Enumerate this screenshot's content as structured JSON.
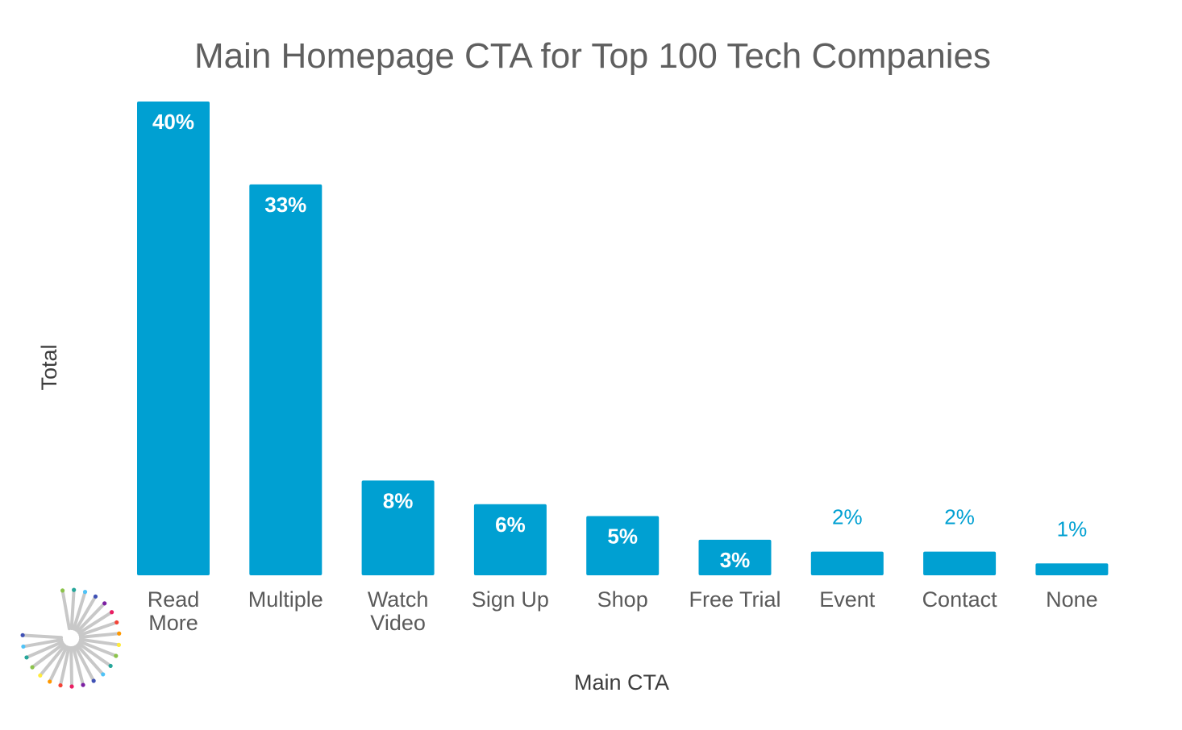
{
  "chart_data": {
    "type": "bar",
    "title": "Main Homepage CTA for Top 100 Tech Companies",
    "xlabel": "Main CTA",
    "ylabel": "Total",
    "categories": [
      [
        "Read",
        "More"
      ],
      [
        "Multiple"
      ],
      [
        "Watch",
        "Video"
      ],
      [
        "Sign Up"
      ],
      [
        "Shop"
      ],
      [
        "Free Trial"
      ],
      [
        "Event"
      ],
      [
        "Contact"
      ],
      [
        "None"
      ]
    ],
    "values": [
      40,
      33,
      8,
      6,
      5,
      3,
      2,
      2,
      1
    ],
    "value_labels": [
      "40%",
      "33%",
      "8%",
      "6%",
      "5%",
      "3%",
      "2%",
      "2%",
      "1%"
    ],
    "ylim": [
      0,
      40
    ],
    "grid": false,
    "bar_color": "#00a0d2"
  },
  "logo": {
    "icon": "spoke-burst-logo-icon",
    "colors": [
      "#8bc34a",
      "#26a69a",
      "#4fc3f7",
      "#3f51b5",
      "#7b1fa2",
      "#e91e63",
      "#f44336",
      "#ff9800",
      "#ffeb3b"
    ]
  }
}
